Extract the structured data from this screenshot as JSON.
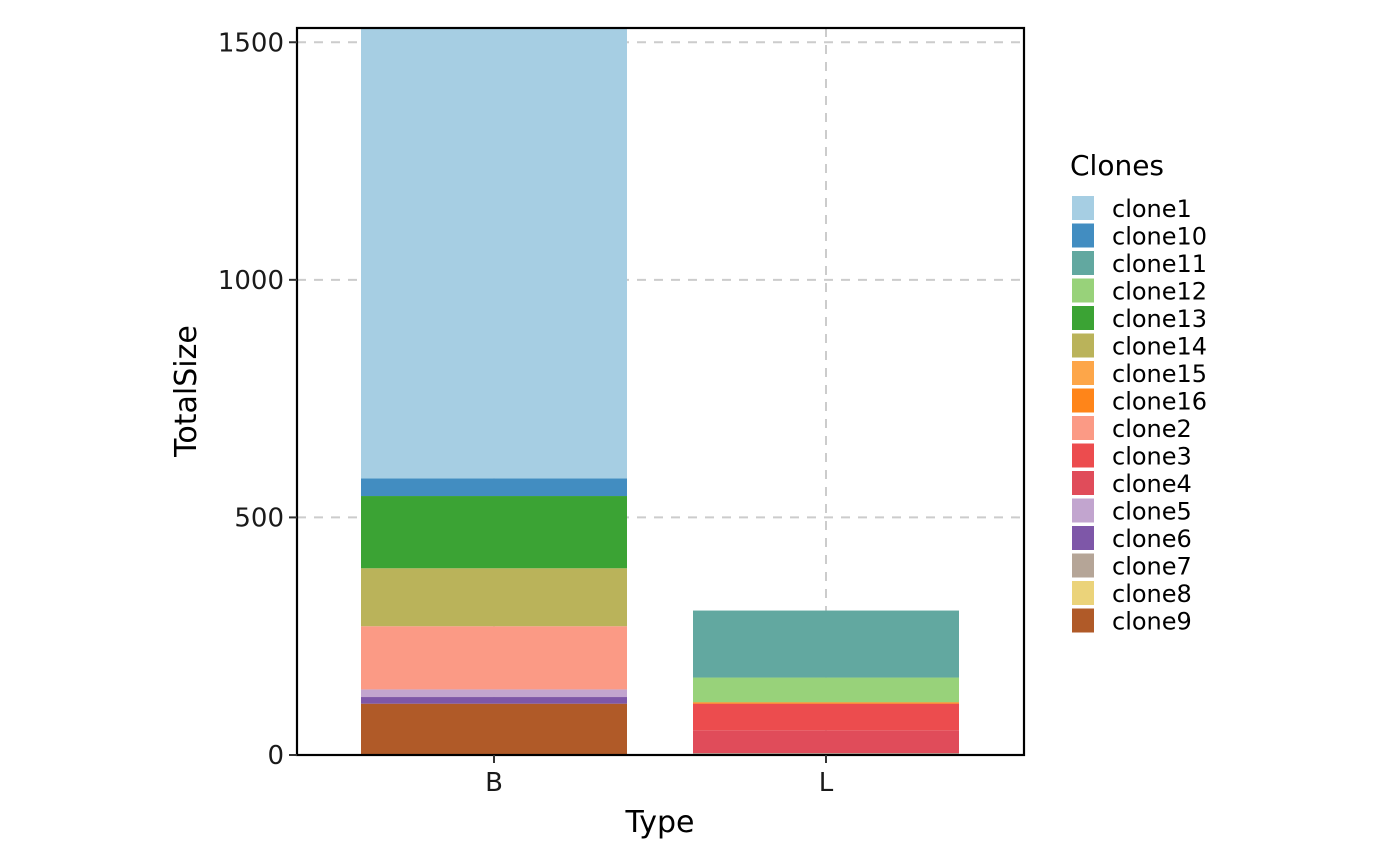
{
  "chart_data": {
    "type": "bar",
    "stacked": true,
    "categories": [
      "B",
      "L"
    ],
    "xlabel": "Type",
    "ylabel": "TotalSize",
    "ylim": [
      0,
      1530
    ],
    "yticks": [
      0,
      500,
      1000,
      1500
    ],
    "grid": "dashed-major",
    "legend": {
      "title": "Clones",
      "position": "right"
    },
    "series": [
      {
        "name": "clone9",
        "color": "#B05A28",
        "values": [
          108,
          0
        ]
      },
      {
        "name": "clone6",
        "color": "#7E57A8",
        "values": [
          14,
          0
        ]
      },
      {
        "name": "clone5",
        "color": "#C2A5CF",
        "values": [
          16,
          0
        ]
      },
      {
        "name": "clone2",
        "color": "#FB9A85",
        "values": [
          133,
          0
        ]
      },
      {
        "name": "clone14",
        "color": "#BAB35A",
        "values": [
          122,
          0
        ]
      },
      {
        "name": "clone13",
        "color": "#3BA334",
        "values": [
          152,
          0
        ]
      },
      {
        "name": "clone10",
        "color": "#428DC1",
        "values": [
          37,
          0
        ]
      },
      {
        "name": "clone1",
        "color": "#A6CEE3",
        "values": [
          948,
          0
        ]
      },
      {
        "name": "clone7",
        "color": "#B5A597",
        "values": [
          0,
          4
        ]
      },
      {
        "name": "clone4",
        "color": "#E04C5A",
        "values": [
          0,
          48
        ]
      },
      {
        "name": "clone3",
        "color": "#EC4C4E",
        "values": [
          0,
          56
        ]
      },
      {
        "name": "clone16",
        "color": "#FF8519",
        "values": [
          0,
          3
        ]
      },
      {
        "name": "clone12",
        "color": "#98D27A",
        "values": [
          0,
          52
        ]
      },
      {
        "name": "clone11",
        "color": "#62A8A0",
        "values": [
          0,
          141
        ]
      }
    ],
    "legend_entries": [
      {
        "name": "clone1",
        "color": "#A6CEE3"
      },
      {
        "name": "clone10",
        "color": "#428DC1"
      },
      {
        "name": "clone11",
        "color": "#62A8A0"
      },
      {
        "name": "clone12",
        "color": "#98D27A"
      },
      {
        "name": "clone13",
        "color": "#3BA334"
      },
      {
        "name": "clone14",
        "color": "#BAB35A"
      },
      {
        "name": "clone15",
        "color": "#FDA649"
      },
      {
        "name": "clone16",
        "color": "#FF8519"
      },
      {
        "name": "clone2",
        "color": "#FB9A85"
      },
      {
        "name": "clone3",
        "color": "#EC4C4E"
      },
      {
        "name": "clone4",
        "color": "#E04C5A"
      },
      {
        "name": "clone5",
        "color": "#C2A5CF"
      },
      {
        "name": "clone6",
        "color": "#7E57A8"
      },
      {
        "name": "clone7",
        "color": "#B5A597"
      },
      {
        "name": "clone8",
        "color": "#EBD37A"
      },
      {
        "name": "clone9",
        "color": "#B05A28"
      }
    ]
  }
}
